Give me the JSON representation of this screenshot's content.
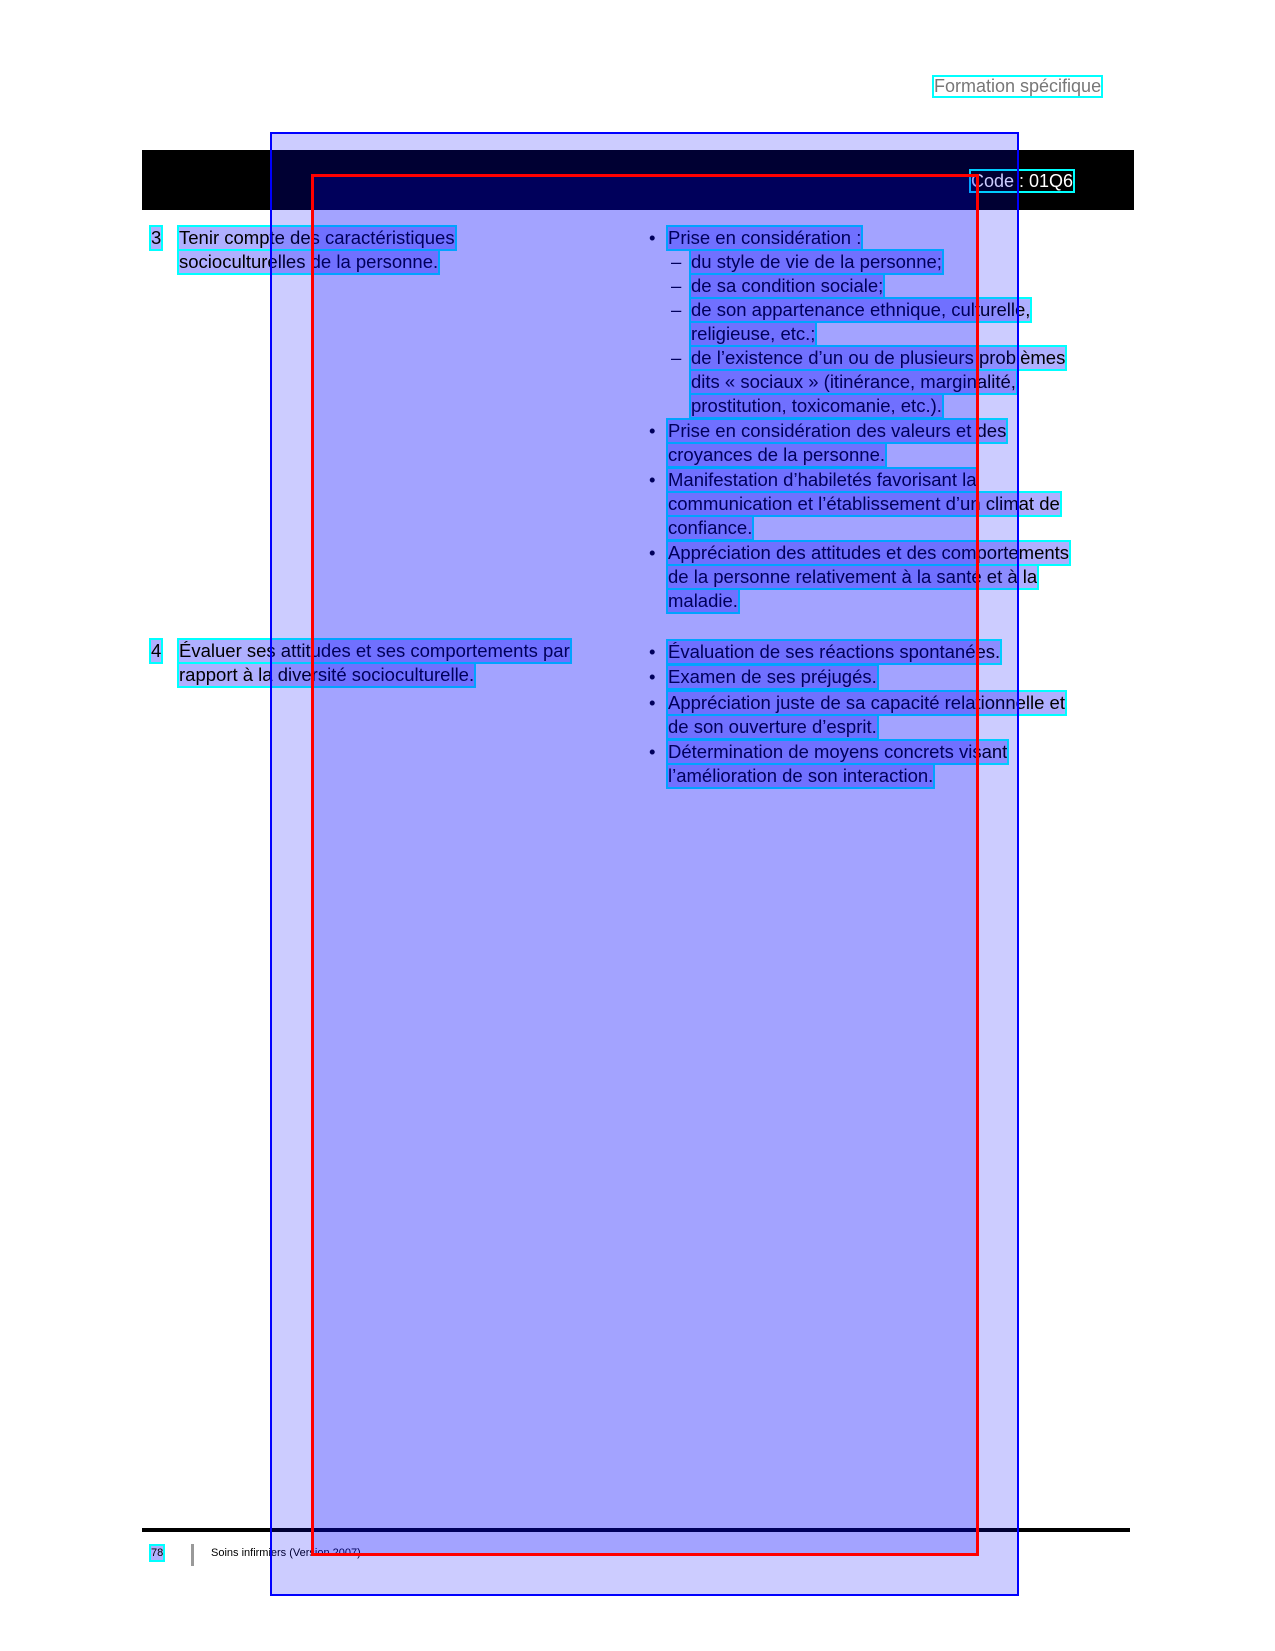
{
  "header": {
    "section": "Formation spécifique",
    "code": "Code :  01Q6"
  },
  "rows": [
    {
      "number": "3",
      "element_lines": [
        "Tenir compte des caractéristiques",
        "socioculturelles de la personne."
      ],
      "criteria": [
        {
          "type": "bullet",
          "text": "Prise en considération :"
        },
        {
          "type": "dash",
          "lines": [
            "du style de vie de la personne;"
          ]
        },
        {
          "type": "dash",
          "lines": [
            "de sa condition sociale;"
          ]
        },
        {
          "type": "dash",
          "lines": [
            "de son appartenance ethnique, culturelle,",
            "religieuse, etc.;"
          ]
        },
        {
          "type": "dash",
          "lines": [
            "de l’existence d’un ou de plusieurs problèmes",
            "dits « sociaux » (itinérance, marginalité,",
            "prostitution, toxicomanie, etc.)."
          ]
        },
        {
          "type": "bullet",
          "lines": [
            "Prise en considération des valeurs et des",
            "croyances de la personne."
          ]
        },
        {
          "type": "bullet",
          "lines": [
            "Manifestation d’habiletés favorisant la",
            "communication et l’établissement d’un climat de",
            "confiance."
          ]
        },
        {
          "type": "bullet",
          "lines": [
            "Appréciation des attitudes et des comportements",
            "de la personne relativement à la santé et à la",
            "maladie."
          ]
        }
      ]
    },
    {
      "number": "4",
      "element_lines": [
        "Évaluer ses attitudes et ses comportements par",
        "rapport à la diversité socioculturelle."
      ],
      "criteria": [
        {
          "type": "bullet",
          "lines": [
            "Évaluation de ses réactions spontanées."
          ]
        },
        {
          "type": "bullet",
          "lines": [
            "Examen de ses préjugés."
          ]
        },
        {
          "type": "bullet",
          "lines": [
            "Appréciation juste de sa capacité relationnelle et",
            "de son ouverture d’esprit."
          ]
        },
        {
          "type": "bullet",
          "lines": [
            "Détermination de moyens concrets visant",
            "l’amélioration de son interaction."
          ]
        }
      ]
    }
  ],
  "footer": {
    "page": "78",
    "title": "Soins infirmiers (Version 2007)"
  },
  "symbols": {
    "bullet": "•",
    "dash": "–"
  }
}
